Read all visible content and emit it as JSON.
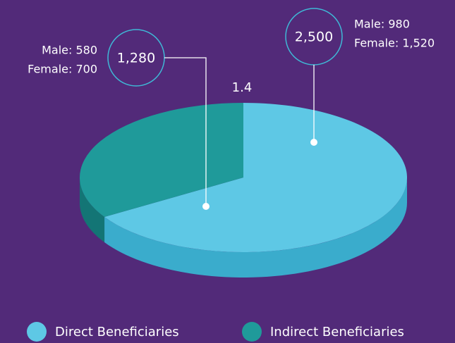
{
  "chart_data": {
    "type": "pie",
    "categories": [
      "Direct Beneficiaries",
      "Indirect Beneficiaries"
    ],
    "values": [
      2500,
      1280
    ],
    "value_labels": [
      "2,500",
      "1,280"
    ],
    "colors": [
      "#5ec8e5",
      "#1f9a9a"
    ],
    "side_colors": [
      "#3aaccc",
      "#137575"
    ],
    "breakdowns": [
      [
        "Male: 980",
        "Female: 1,520"
      ],
      [
        "Male: 580",
        "Female: 700"
      ]
    ],
    "annotation": "1.4"
  }
}
